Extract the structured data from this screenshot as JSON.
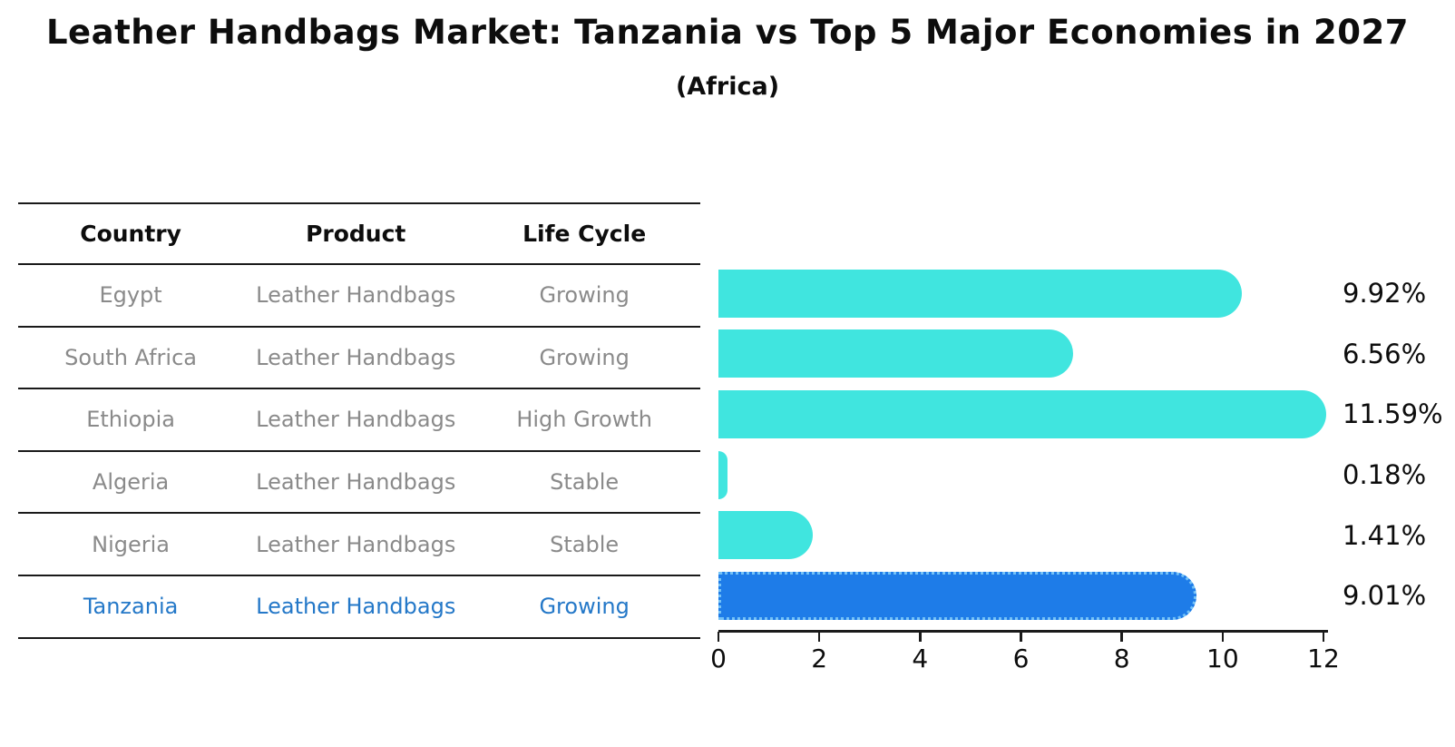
{
  "title": "Leather Handbags Market: Tanzania vs Top 5 Major Economies in 2027",
  "subtitle": "(Africa)",
  "table": {
    "headers": [
      "Country",
      "Product",
      "Life Cycle"
    ],
    "rows": [
      {
        "country": "Egypt",
        "product": "Leather Handbags",
        "life_cycle": "Growing",
        "highlighted": false
      },
      {
        "country": "South Africa",
        "product": "Leather Handbags",
        "life_cycle": "Growing",
        "highlighted": false
      },
      {
        "country": "Ethiopia",
        "product": "Leather Handbags",
        "life_cycle": "High Growth",
        "highlighted": false
      },
      {
        "country": "Algeria",
        "product": "Leather Handbags",
        "life_cycle": "Stable",
        "highlighted": false
      },
      {
        "country": "Nigeria",
        "product": "Leather Handbags",
        "life_cycle": "Stable",
        "highlighted": false
      },
      {
        "country": "Tanzania",
        "product": "Leather Handbags",
        "life_cycle": "Growing",
        "highlighted": true
      }
    ]
  },
  "chart_data": {
    "type": "bar",
    "orientation": "horizontal",
    "categories": [
      "Egypt",
      "South Africa",
      "Ethiopia",
      "Algeria",
      "Nigeria",
      "Tanzania"
    ],
    "values": [
      9.92,
      6.56,
      11.59,
      0.18,
      1.41,
      9.01
    ],
    "value_labels": [
      "9.92%",
      "6.56%",
      "11.59%",
      "0.18%",
      "1.41%",
      "9.01%"
    ],
    "title": "Leather Handbags Market: Tanzania vs Top 5 Major Economies in 2027",
    "subtitle": "(Africa)",
    "xlabel": "",
    "ylabel": "",
    "xlim": [
      0,
      12
    ],
    "x_ticks": [
      "0",
      "2",
      "4",
      "6",
      "8",
      "10",
      "12"
    ],
    "grid": false,
    "legend": false,
    "highlight_category": "Tanzania",
    "bar_color": "#40E5DF",
    "highlight_bar_color": "#1E7CE8",
    "highlight_border_color": "#74C2F7",
    "highlight_text_color": "#2478c8",
    "text_color": "#0d0d0d",
    "muted_text_color": "#8a8a8a"
  }
}
